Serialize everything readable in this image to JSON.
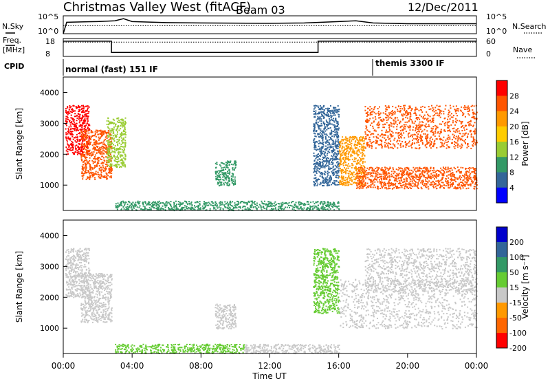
{
  "header": {
    "title": "Christmas Valley West (fitACF)",
    "beam": "Beam 03",
    "date": "12/Dec/2011"
  },
  "summary": {
    "nsky_label": "N.Sky",
    "nsky_ticks": [
      "10^5",
      "10^0"
    ],
    "nsearch_label": "N.Search",
    "nsearch_ticks": [
      "10^5",
      "10^0"
    ],
    "freq_label_1": "Freq.",
    "freq_label_2": "[MHz]",
    "freq_ticks": [
      "18",
      "8"
    ],
    "nave_label": "Nave",
    "nave_ticks": [
      "60",
      "0"
    ],
    "cpid_label": "CPID",
    "cpid_segments": [
      {
        "label": "normal (fast) 151 IF",
        "start_hour": 0
      },
      {
        "label": "themis 3300 IF",
        "start_hour": 18
      }
    ]
  },
  "power_panel": {
    "ylabel": "Slant Range [km]",
    "yticks": [
      "4000",
      "3000",
      "2000",
      "1000"
    ],
    "colorbar_label": "Power [dB]",
    "colorbar_ticks": [
      "28",
      "24",
      "20",
      "16",
      "12",
      "8",
      "4"
    ],
    "colorbar_colors": [
      "#ff0000",
      "#ff5500",
      "#ff9900",
      "#ffcc00",
      "#99cc33",
      "#339966",
      "#336699",
      "#0000ff"
    ]
  },
  "velocity_panel": {
    "ylabel": "Slant Range [km]",
    "yticks": [
      "4000",
      "3000",
      "2000",
      "1000"
    ],
    "colorbar_label": "Velocity [m s⁻¹]",
    "colorbar_ticks": [
      "200",
      "100",
      "50",
      "15",
      "-15",
      "-50",
      "-100",
      "-200"
    ],
    "colorbar_colors": [
      "#0000cc",
      "#336699",
      "#339966",
      "#66cc33",
      "#c8c8c8",
      "#ff9900",
      "#ff6600",
      "#ff0000"
    ]
  },
  "xaxis": {
    "ticks": [
      "00:00",
      "04:00",
      "08:00",
      "12:00",
      "16:00",
      "20:00",
      "00:00"
    ],
    "label": "Time UT"
  },
  "chart_data": [
    {
      "type": "line",
      "title": "N.Sky / N.Search",
      "x_range_hours": [
        0,
        24
      ],
      "log_scale": true,
      "series": [
        {
          "name": "N.Sky",
          "x": [
            0,
            0.2,
            1,
            2,
            3,
            3.5,
            4,
            6,
            8,
            12,
            14,
            16,
            17,
            18,
            20,
            22,
            24
          ],
          "y_log10": [
            0,
            3.2,
            3.3,
            3.4,
            3.6,
            4.2,
            3.4,
            3.1,
            3.0,
            2.9,
            3.0,
            3.4,
            3.6,
            3.0,
            2.8,
            2.8,
            2.8
          ]
        },
        {
          "name": "N.Search",
          "x": [
            0,
            24
          ],
          "y_log10": [
            2.2,
            2.2
          ]
        }
      ]
    },
    {
      "type": "line",
      "title": "Freq. / Nave",
      "x_range_hours": [
        0,
        24
      ],
      "series": [
        {
          "name": "Freq.",
          "x": [
            0,
            2.8,
            2.8,
            14.8,
            14.8,
            24
          ],
          "y": [
            16.5,
            16.5,
            10.2,
            10.2,
            16.5,
            16.5
          ]
        },
        {
          "name": "Nave",
          "x": [
            0,
            24
          ],
          "y": [
            16,
            16
          ]
        }
      ]
    },
    {
      "type": "heatmap",
      "title": "Power [dB]",
      "x_range_hours": [
        0,
        24
      ],
      "y_range_km": [
        180,
        4500
      ],
      "scale_db": [
        0,
        32
      ],
      "features": [
        {
          "t0": 0.1,
          "t1": 1.5,
          "r0": 2000,
          "r1": 3600,
          "db": 30
        },
        {
          "t0": 1.0,
          "t1": 2.8,
          "r0": 1200,
          "r1": 2800,
          "db": 28
        },
        {
          "t0": 2.5,
          "t1": 3.6,
          "r0": 1600,
          "r1": 3200,
          "db": 14
        },
        {
          "t0": 8.8,
          "t1": 10.0,
          "r0": 1000,
          "r1": 1800,
          "db": 9
        },
        {
          "t0": 3.0,
          "t1": 16.0,
          "r0": 200,
          "r1": 500,
          "db": 8
        },
        {
          "t0": 14.5,
          "t1": 16.0,
          "r0": 1000,
          "r1": 3600,
          "db": 6
        },
        {
          "t0": 16.0,
          "t1": 17.5,
          "r0": 1000,
          "r1": 2600,
          "db": 22
        },
        {
          "t0": 17.0,
          "t1": 24.0,
          "r0": 900,
          "r1": 1600,
          "db": 29
        },
        {
          "t0": 17.5,
          "t1": 24.0,
          "r0": 2200,
          "r1": 3600,
          "db": 28
        }
      ]
    },
    {
      "type": "heatmap",
      "title": "Velocity [m s⁻¹]",
      "x_range_hours": [
        0,
        24
      ],
      "y_range_km": [
        180,
        4500
      ],
      "scale_ms": [
        -200,
        200
      ],
      "features": [
        {
          "t0": 0.1,
          "t1": 1.5,
          "r0": 2000,
          "r1": 3600,
          "v": 0
        },
        {
          "t0": 1.0,
          "t1": 2.8,
          "r0": 1200,
          "r1": 2800,
          "v": 0
        },
        {
          "t0": 8.8,
          "t1": 10.0,
          "r0": 1000,
          "r1": 1800,
          "v": 0
        },
        {
          "t0": 3.0,
          "t1": 10.5,
          "r0": 200,
          "r1": 500,
          "v": 30
        },
        {
          "t0": 10.5,
          "t1": 16.0,
          "r0": 200,
          "r1": 500,
          "v": -40
        },
        {
          "t0": 14.5,
          "t1": 16.0,
          "r0": 1500,
          "r1": 3600,
          "v": 25
        },
        {
          "t0": 16.0,
          "t1": 24.0,
          "r0": 1000,
          "r1": 2600,
          "v": 0
        },
        {
          "t0": 17.5,
          "t1": 24.0,
          "r0": 2200,
          "r1": 3600,
          "v": 0
        }
      ]
    }
  ]
}
